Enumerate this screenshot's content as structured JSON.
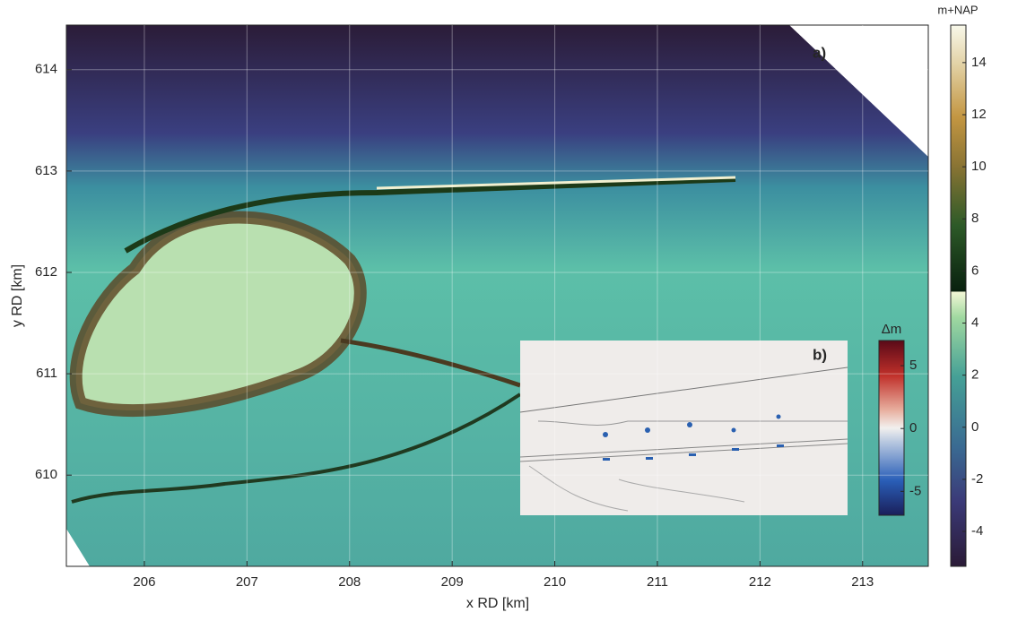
{
  "panel_a": {
    "label": "a)",
    "xlabel": "x RD [km]",
    "ylabel": "y RD [km]",
    "xlim": [
      205.24,
      213.64
    ],
    "xticks": [
      206,
      207,
      208,
      209,
      210,
      211,
      212,
      213
    ],
    "ylim": [
      609.1,
      614.44
    ],
    "yticks": [
      610,
      611,
      612,
      613,
      614
    ],
    "grid": true
  },
  "colorbar": {
    "title": "m+NAP",
    "lim": [
      -5.34,
      15.44
    ],
    "ticks": [
      -4,
      -2,
      0,
      2,
      4,
      6,
      8,
      10,
      12,
      14
    ]
  },
  "panel_b": {
    "label": "b)",
    "colorbar": {
      "title": "Δm",
      "lim": [
        -6.9,
        7
      ],
      "ticks": [
        -5,
        0,
        5
      ]
    }
  }
}
